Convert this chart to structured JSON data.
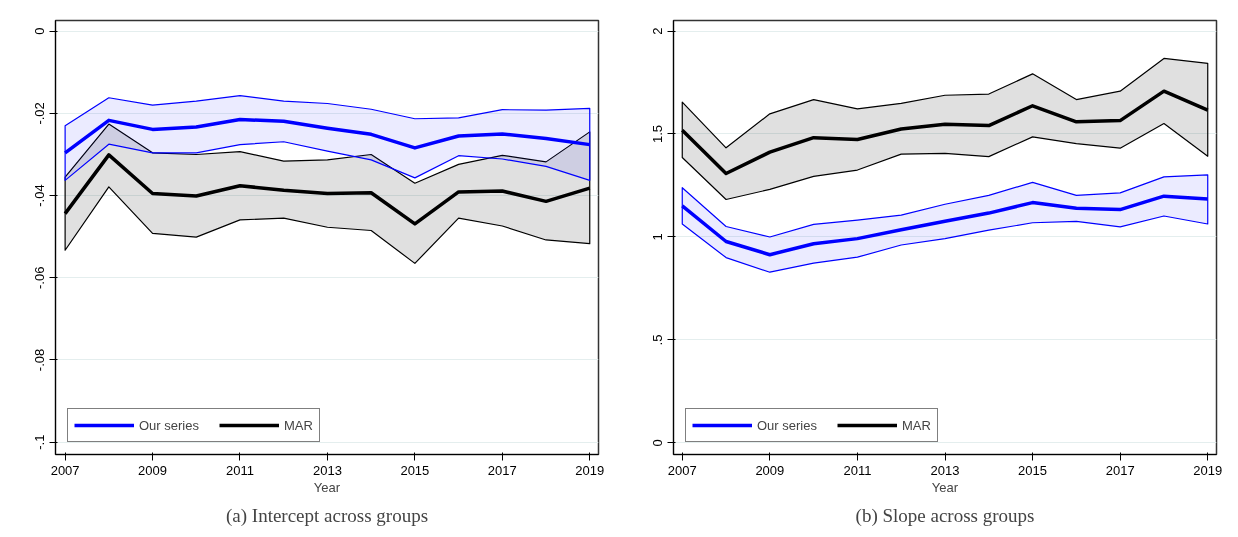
{
  "chart_data": [
    {
      "type": "line",
      "title": "(a) Intercept across groups",
      "xlabel": "Year",
      "x": [
        2007,
        2008,
        2009,
        2010,
        2011,
        2012,
        2013,
        2014,
        2015,
        2016,
        2017,
        2018,
        2019
      ],
      "xlim": [
        2006.78,
        2019.2
      ],
      "xticks": [
        2007,
        2009,
        2011,
        2013,
        2015,
        2017,
        2019
      ],
      "ylim": [
        -0.103,
        0.0026
      ],
      "yticks": [
        0,
        {
          "value": -0.02,
          "label": "-.02"
        },
        {
          "value": -0.04,
          "label": "-.04"
        },
        {
          "value": -0.06,
          "label": "-.06"
        },
        {
          "value": -0.08,
          "label": "-.08"
        },
        {
          "value": -0.1,
          "label": "-.1"
        }
      ],
      "grid": "y",
      "legend": "bottom left",
      "series": [
        {
          "name": "Our series",
          "color": "#0000ff",
          "values": [
            -0.0296,
            -0.0217,
            -0.0239,
            -0.0233,
            -0.0215,
            -0.0219,
            -0.0236,
            -0.0251,
            -0.0284,
            -0.0255,
            -0.025,
            -0.0261,
            -0.0276
          ],
          "upper": [
            -0.023,
            -0.0162,
            -0.018,
            -0.017,
            -0.0157,
            -0.017,
            -0.0176,
            -0.019,
            -0.0213,
            -0.0211,
            -0.0191,
            -0.0192,
            -0.0188
          ],
          "lower": [
            -0.0363,
            -0.0275,
            -0.0296,
            -0.0296,
            -0.0276,
            -0.0269,
            -0.0292,
            -0.0313,
            -0.0357,
            -0.0303,
            -0.0311,
            -0.0329,
            -0.0363
          ]
        },
        {
          "name": "MAR",
          "color": "#000000",
          "values": [
            -0.0444,
            -0.0301,
            -0.0395,
            -0.0401,
            -0.0376,
            -0.0387,
            -0.0395,
            -0.0393,
            -0.0469,
            -0.0391,
            -0.0389,
            -0.0414,
            -0.0382
          ],
          "upper": [
            -0.0355,
            -0.0226,
            -0.0296,
            -0.03,
            -0.0293,
            -0.0316,
            -0.0313,
            -0.03,
            -0.037,
            -0.0324,
            -0.0302,
            -0.0318,
            -0.0245
          ],
          "lower": [
            -0.0533,
            -0.0379,
            -0.0492,
            -0.0501,
            -0.0459,
            -0.0455,
            -0.0477,
            -0.0485,
            -0.0565,
            -0.0455,
            -0.0474,
            -0.0508,
            -0.0517
          ]
        }
      ]
    },
    {
      "type": "line",
      "title": "(b) Slope across groups",
      "xlabel": "Year",
      "x": [
        2007,
        2008,
        2009,
        2010,
        2011,
        2012,
        2013,
        2014,
        2015,
        2016,
        2017,
        2018,
        2019
      ],
      "xlim": [
        2006.8,
        2019.2
      ],
      "xticks": [
        2007,
        2009,
        2011,
        2013,
        2015,
        2017,
        2019
      ],
      "ylim": [
        -0.056,
        2.051
      ],
      "yticks": [
        0,
        {
          "value": 0.5,
          "label": ".5"
        },
        1,
        {
          "value": 1.5,
          "label": "1.5"
        },
        2
      ],
      "grid": "y",
      "legend": "bottom left",
      "series": [
        {
          "name": "Our series",
          "color": "#0000ff",
          "values": [
            1.151,
            0.978,
            0.914,
            0.967,
            0.992,
            1.035,
            1.076,
            1.116,
            1.167,
            1.139,
            1.133,
            1.198,
            1.184
          ],
          "upper": [
            1.239,
            1.051,
            1.0,
            1.061,
            1.082,
            1.106,
            1.159,
            1.202,
            1.265,
            1.202,
            1.214,
            1.292,
            1.302
          ],
          "lower": [
            1.063,
            0.9,
            0.829,
            0.873,
            0.902,
            0.961,
            0.992,
            1.033,
            1.069,
            1.076,
            1.049,
            1.102,
            1.063
          ]
        },
        {
          "name": "MAR",
          "color": "#000000",
          "values": [
            1.518,
            1.308,
            1.412,
            1.482,
            1.473,
            1.524,
            1.547,
            1.541,
            1.637,
            1.559,
            1.565,
            1.708,
            1.616
          ],
          "upper": [
            1.655,
            1.433,
            1.598,
            1.667,
            1.622,
            1.649,
            1.688,
            1.694,
            1.792,
            1.667,
            1.708,
            1.867,
            1.843
          ],
          "lower": [
            1.386,
            1.182,
            1.231,
            1.294,
            1.325,
            1.402,
            1.406,
            1.39,
            1.486,
            1.453,
            1.431,
            1.551,
            1.392
          ]
        }
      ]
    }
  ]
}
